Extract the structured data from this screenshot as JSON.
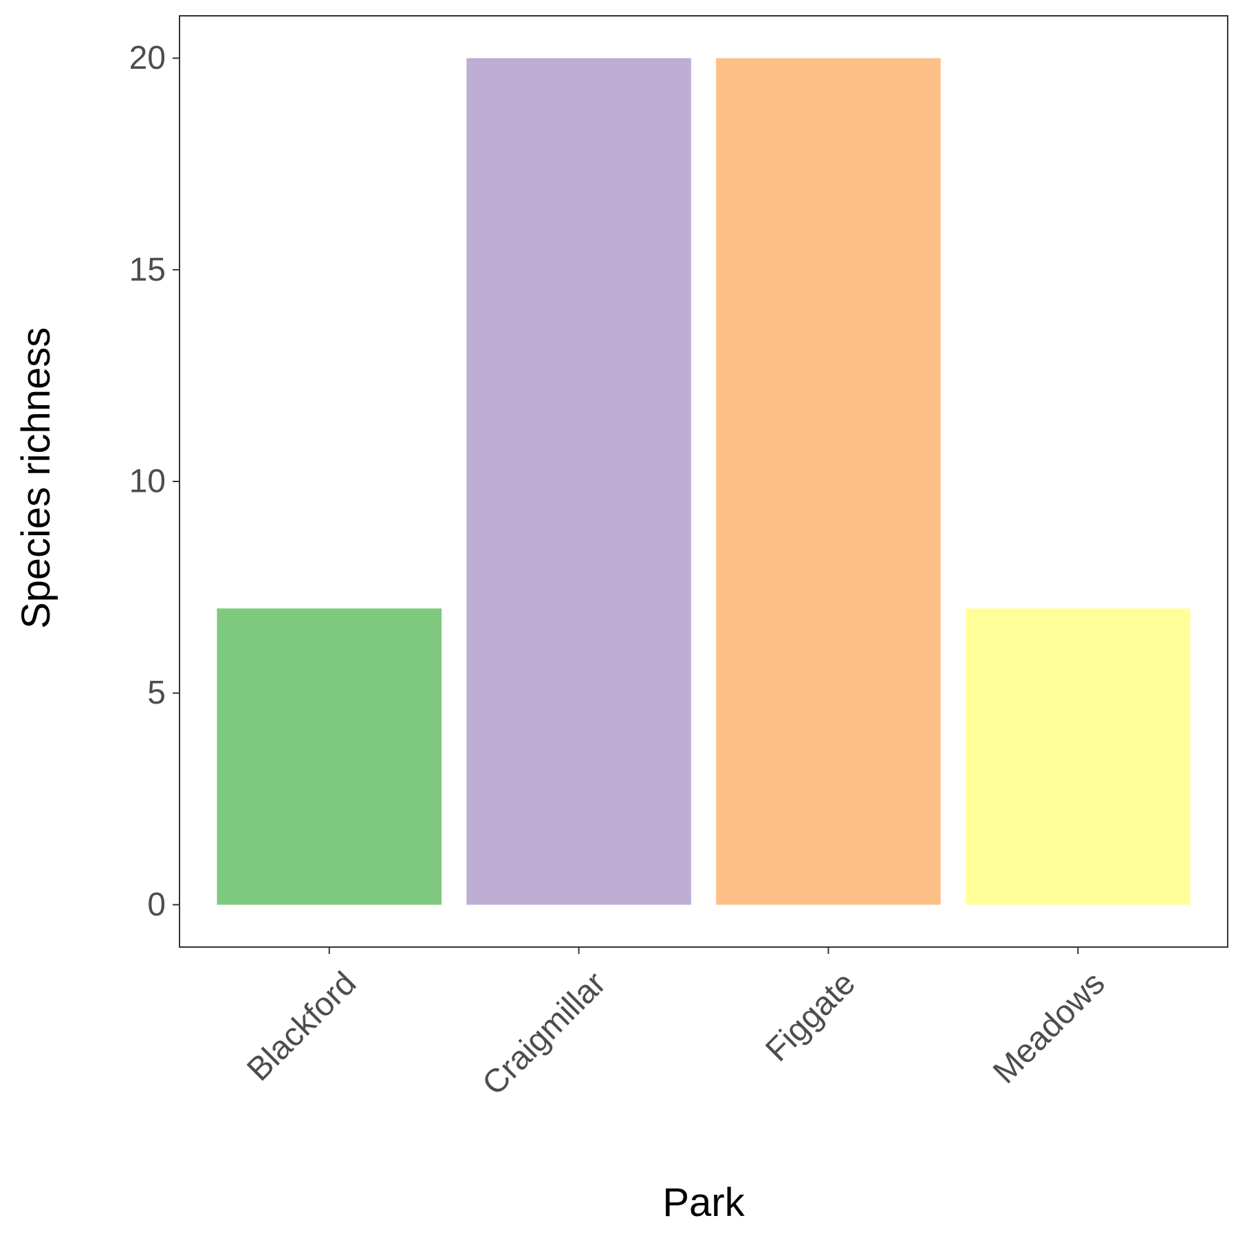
{
  "chart_data": {
    "type": "bar",
    "categories": [
      "Blackford",
      "Craigmillar",
      "Figgate",
      "Meadows"
    ],
    "values": [
      7,
      20,
      20,
      7
    ],
    "colors": [
      "#7fc97f",
      "#beaed4",
      "#fdc086",
      "#ffff99"
    ],
    "title": "",
    "xlabel": "Park",
    "ylabel": "Species richness",
    "ylim": [
      -1,
      21
    ],
    "yticks": [
      0,
      5,
      10,
      15,
      20
    ],
    "grid": false,
    "legend": "none",
    "panel_border_color": "#333333",
    "tick_color": "#333333"
  }
}
